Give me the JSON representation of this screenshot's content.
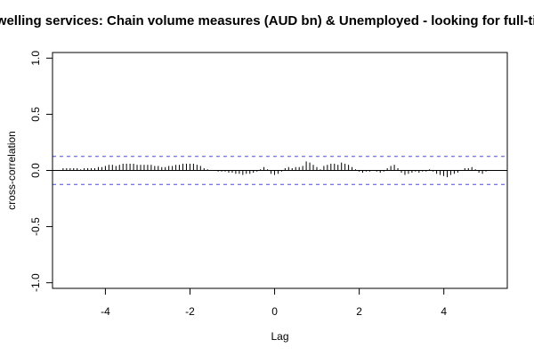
{
  "chart_data": {
    "type": "bar",
    "title": "welling services: Chain volume measures (AUD bn) & Unemployed - looking for full-time",
    "xlabel": "Lag",
    "ylabel": "cross-correlation",
    "xlim": [
      -5.25,
      5.5
    ],
    "ylim": [
      -1.05,
      1.05
    ],
    "x_ticks": [
      -4,
      -2,
      0,
      2,
      4
    ],
    "x_tick_labels": [
      "-4",
      "-2",
      "0",
      "2",
      "4"
    ],
    "y_ticks": [
      -1.0,
      -0.5,
      0.0,
      0.5,
      1.0
    ],
    "y_tick_labels": [
      "-1.0",
      "-0.5",
      "0.0",
      "0.5",
      "1.0"
    ],
    "confidence_bounds": [
      0.125,
      -0.125
    ],
    "grid": false,
    "lag_step": 0.0833,
    "lag_start": -5.0,
    "values": [
      0.02,
      0.02,
      0.02,
      0.02,
      0.02,
      0.01,
      0.02,
      0.02,
      0.02,
      0.02,
      0.03,
      0.03,
      0.04,
      0.05,
      0.05,
      0.04,
      0.05,
      0.06,
      0.06,
      0.06,
      0.06,
      0.05,
      0.05,
      0.05,
      0.05,
      0.05,
      0.04,
      0.04,
      0.03,
      0.03,
      0.04,
      0.04,
      0.05,
      0.05,
      0.06,
      0.06,
      0.06,
      0.06,
      0.05,
      0.04,
      0.02,
      0.01,
      0.0,
      0.0,
      -0.01,
      -0.01,
      -0.01,
      -0.02,
      -0.02,
      -0.03,
      -0.03,
      -0.04,
      -0.03,
      -0.03,
      -0.02,
      -0.01,
      0.01,
      0.03,
      0.01,
      -0.03,
      -0.04,
      -0.03,
      -0.01,
      0.02,
      0.03,
      0.02,
      0.03,
      0.03,
      0.04,
      0.08,
      0.07,
      0.05,
      0.03,
      0.01,
      0.04,
      0.05,
      0.06,
      0.06,
      0.05,
      0.07,
      0.06,
      0.05,
      0.03,
      0.01,
      -0.01,
      -0.02,
      -0.01,
      -0.01,
      0.0,
      -0.01,
      -0.02,
      -0.01,
      0.02,
      0.04,
      0.05,
      0.02,
      -0.02,
      -0.04,
      -0.03,
      -0.02,
      -0.01,
      -0.02,
      -0.01,
      -0.01,
      0.01,
      -0.01,
      -0.03,
      -0.04,
      -0.05,
      -0.06,
      -0.04,
      -0.03,
      -0.02,
      0.0,
      0.02,
      0.02,
      0.03,
      0.01,
      -0.02,
      -0.03,
      -0.01
    ]
  }
}
